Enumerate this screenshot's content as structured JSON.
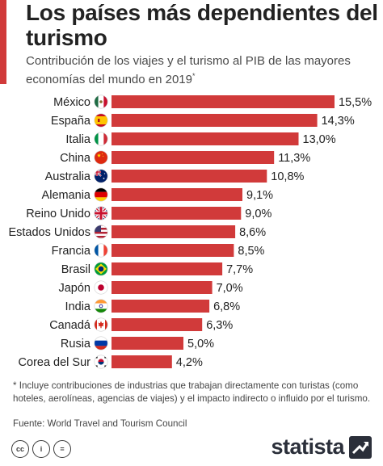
{
  "header": {
    "title": "Los países más dependientes del turismo",
    "subtitle": "Contribución de los viajes y el turismo al PIB de las mayores economías del mundo en 2019",
    "subtitle_mark": "*"
  },
  "colors": {
    "bar": "#d13a3a",
    "accent": "#d13a3a"
  },
  "chart_data": {
    "type": "bar",
    "orientation": "horizontal",
    "categories": [
      "México",
      "España",
      "Italia",
      "China",
      "Australia",
      "Alemania",
      "Reino Unido",
      "Estados Unidos",
      "Francia",
      "Brasil",
      "Japón",
      "India",
      "Canadá",
      "Rusia",
      "Corea del Sur"
    ],
    "values": [
      15.5,
      14.3,
      13.0,
      11.3,
      10.8,
      9.1,
      9.0,
      8.6,
      8.5,
      7.7,
      7.0,
      6.8,
      6.3,
      5.0,
      4.2
    ],
    "value_labels": [
      "15,5%",
      "14,3%",
      "13,0%",
      "11,3%",
      "10,8%",
      "9,1%",
      "9,0%",
      "8,6%",
      "8,5%",
      "7,7%",
      "7,0%",
      "6,8%",
      "6,3%",
      "5,0%",
      "4,2%"
    ],
    "flags": [
      "mexico-flag-icon",
      "spain-flag-icon",
      "italy-flag-icon",
      "china-flag-icon",
      "australia-flag-icon",
      "germany-flag-icon",
      "uk-flag-icon",
      "usa-flag-icon",
      "france-flag-icon",
      "brazil-flag-icon",
      "japan-flag-icon",
      "india-flag-icon",
      "canada-flag-icon",
      "russia-flag-icon",
      "south-korea-flag-icon"
    ],
    "xlim": [
      0,
      15.5
    ],
    "grid": false,
    "unit": "%"
  },
  "footer": {
    "footnote": "* Incluye contribuciones de industrias que trabajan directamente con turistas (como hoteles, aerolíneas, agencias de viajes) y el impacto indirecto o influido por el turismo.",
    "source": "Fuente: World Travel and Tourism Council",
    "brand": "statista",
    "license_icons": [
      "cc-icon",
      "by-icon",
      "nd-icon"
    ],
    "license_texts": [
      "cc",
      "i",
      "="
    ]
  }
}
